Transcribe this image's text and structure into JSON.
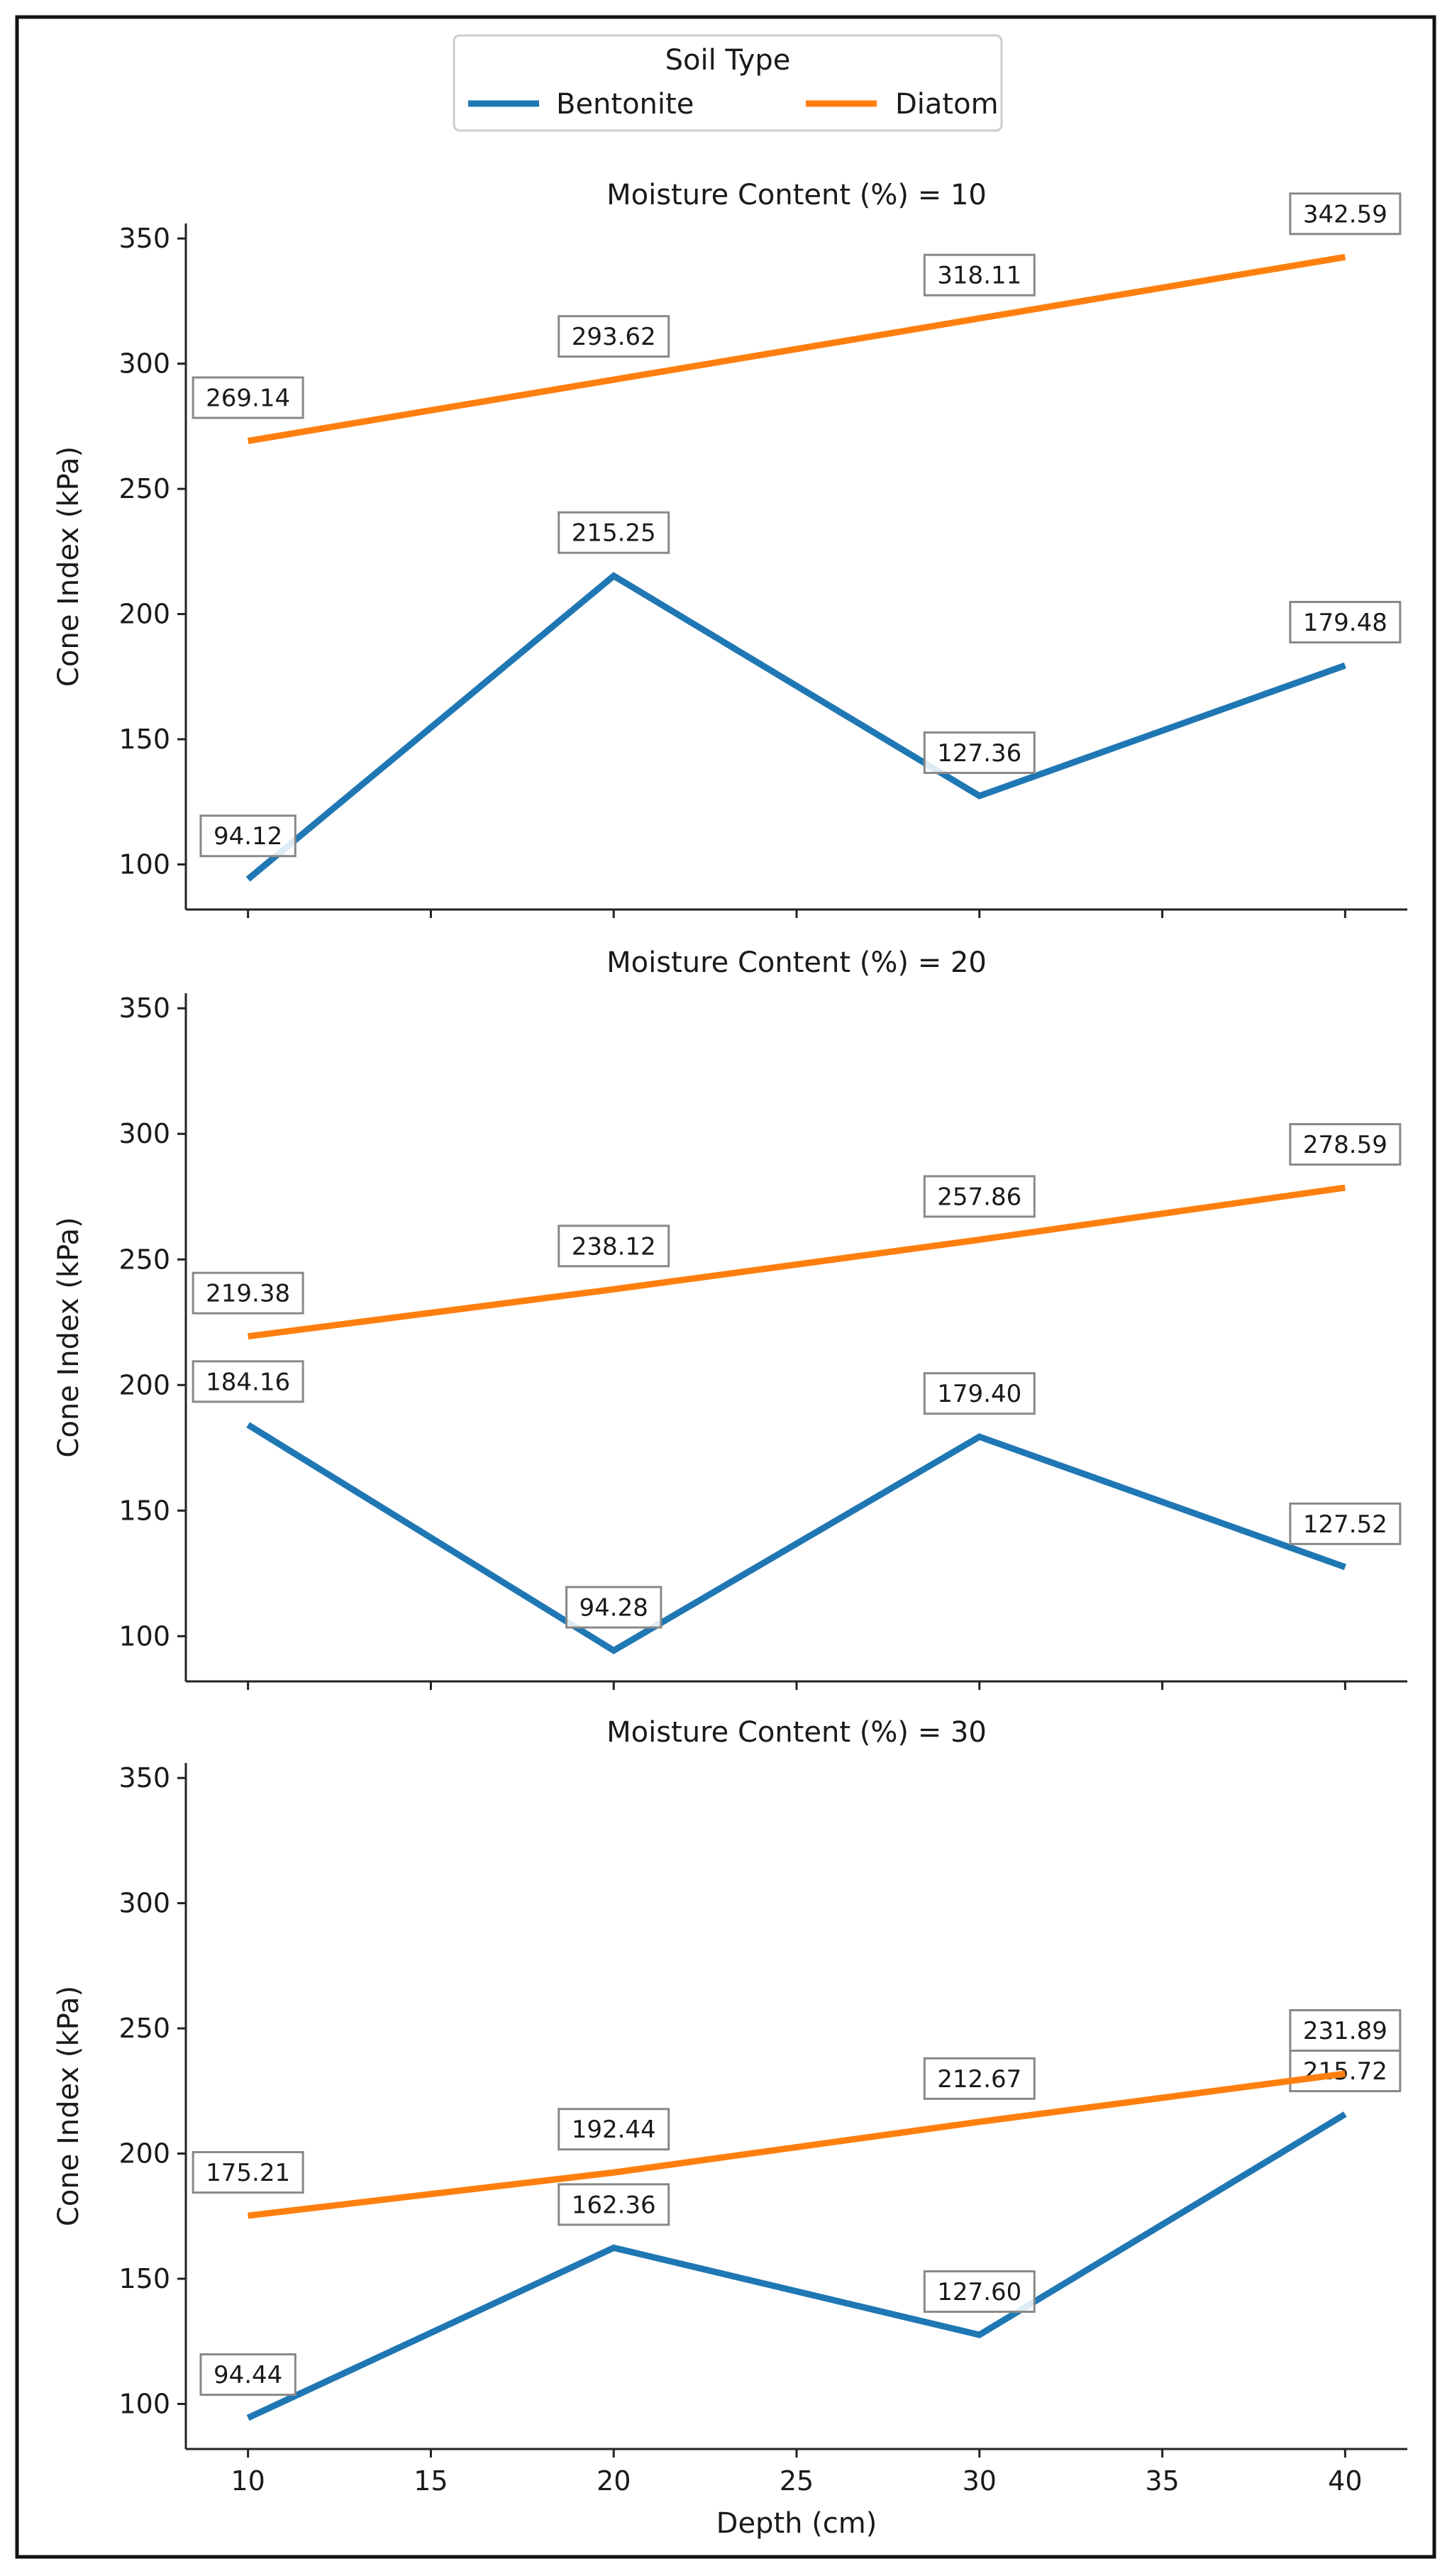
{
  "legend": {
    "title": "Soil Type",
    "placement": "top-center"
  },
  "colors": {
    "Bentonite": "#1f77b4",
    "Diatom": "#ff7f0e"
  },
  "chart_data": [
    {
      "type": "line",
      "title": "Moisture Content (%) = 10",
      "xlabel": "",
      "ylabel": "Cone Index (kPa)",
      "x": [
        10,
        20,
        30,
        40
      ],
      "xlim": [
        8.3,
        41.7
      ],
      "ylim": [
        82,
        356
      ],
      "yticks": [
        100,
        150,
        200,
        250,
        300,
        350
      ],
      "xticks": [
        10,
        15,
        20,
        25,
        30,
        35,
        40
      ],
      "show_xtick_labels": false,
      "grid": false,
      "series": [
        {
          "name": "Bentonite",
          "values": [
            94.12,
            215.25,
            127.36,
            179.48
          ],
          "labels": [
            "94.12",
            "215.25",
            "127.36",
            "179.48"
          ]
        },
        {
          "name": "Diatom",
          "values": [
            269.14,
            293.62,
            318.11,
            342.59
          ],
          "labels": [
            "269.14",
            "293.62",
            "318.11",
            "342.59"
          ]
        }
      ]
    },
    {
      "type": "line",
      "title": "Moisture Content (%) = 20",
      "xlabel": "",
      "ylabel": "Cone Index (kPa)",
      "x": [
        10,
        20,
        30,
        40
      ],
      "xlim": [
        8.3,
        41.7
      ],
      "ylim": [
        82,
        356
      ],
      "yticks": [
        100,
        150,
        200,
        250,
        300,
        350
      ],
      "xticks": [
        10,
        15,
        20,
        25,
        30,
        35,
        40
      ],
      "show_xtick_labels": false,
      "grid": false,
      "series": [
        {
          "name": "Bentonite",
          "values": [
            184.16,
            94.28,
            179.4,
            127.52
          ],
          "labels": [
            "184.16",
            "94.28",
            "179.40",
            "127.52"
          ]
        },
        {
          "name": "Diatom",
          "values": [
            219.38,
            238.12,
            257.86,
            278.59
          ],
          "labels": [
            "219.38",
            "238.12",
            "257.86",
            "278.59"
          ]
        }
      ]
    },
    {
      "type": "line",
      "title": "Moisture Content (%) = 30",
      "xlabel": "Depth (cm)",
      "ylabel": "Cone Index (kPa)",
      "x": [
        10,
        20,
        30,
        40
      ],
      "xlim": [
        8.3,
        41.7
      ],
      "ylim": [
        82,
        356
      ],
      "yticks": [
        100,
        150,
        200,
        250,
        300,
        350
      ],
      "xticks": [
        10,
        15,
        20,
        25,
        30,
        35,
        40
      ],
      "show_xtick_labels": true,
      "grid": false,
      "series": [
        {
          "name": "Bentonite",
          "values": [
            94.44,
            162.36,
            127.6,
            215.72
          ],
          "labels": [
            "94.44",
            "162.36",
            "127.60",
            "215.72"
          ]
        },
        {
          "name": "Diatom",
          "values": [
            175.21,
            192.44,
            212.67,
            231.89
          ],
          "labels": [
            "175.21",
            "192.44",
            "212.67",
            "231.89"
          ]
        }
      ]
    }
  ]
}
